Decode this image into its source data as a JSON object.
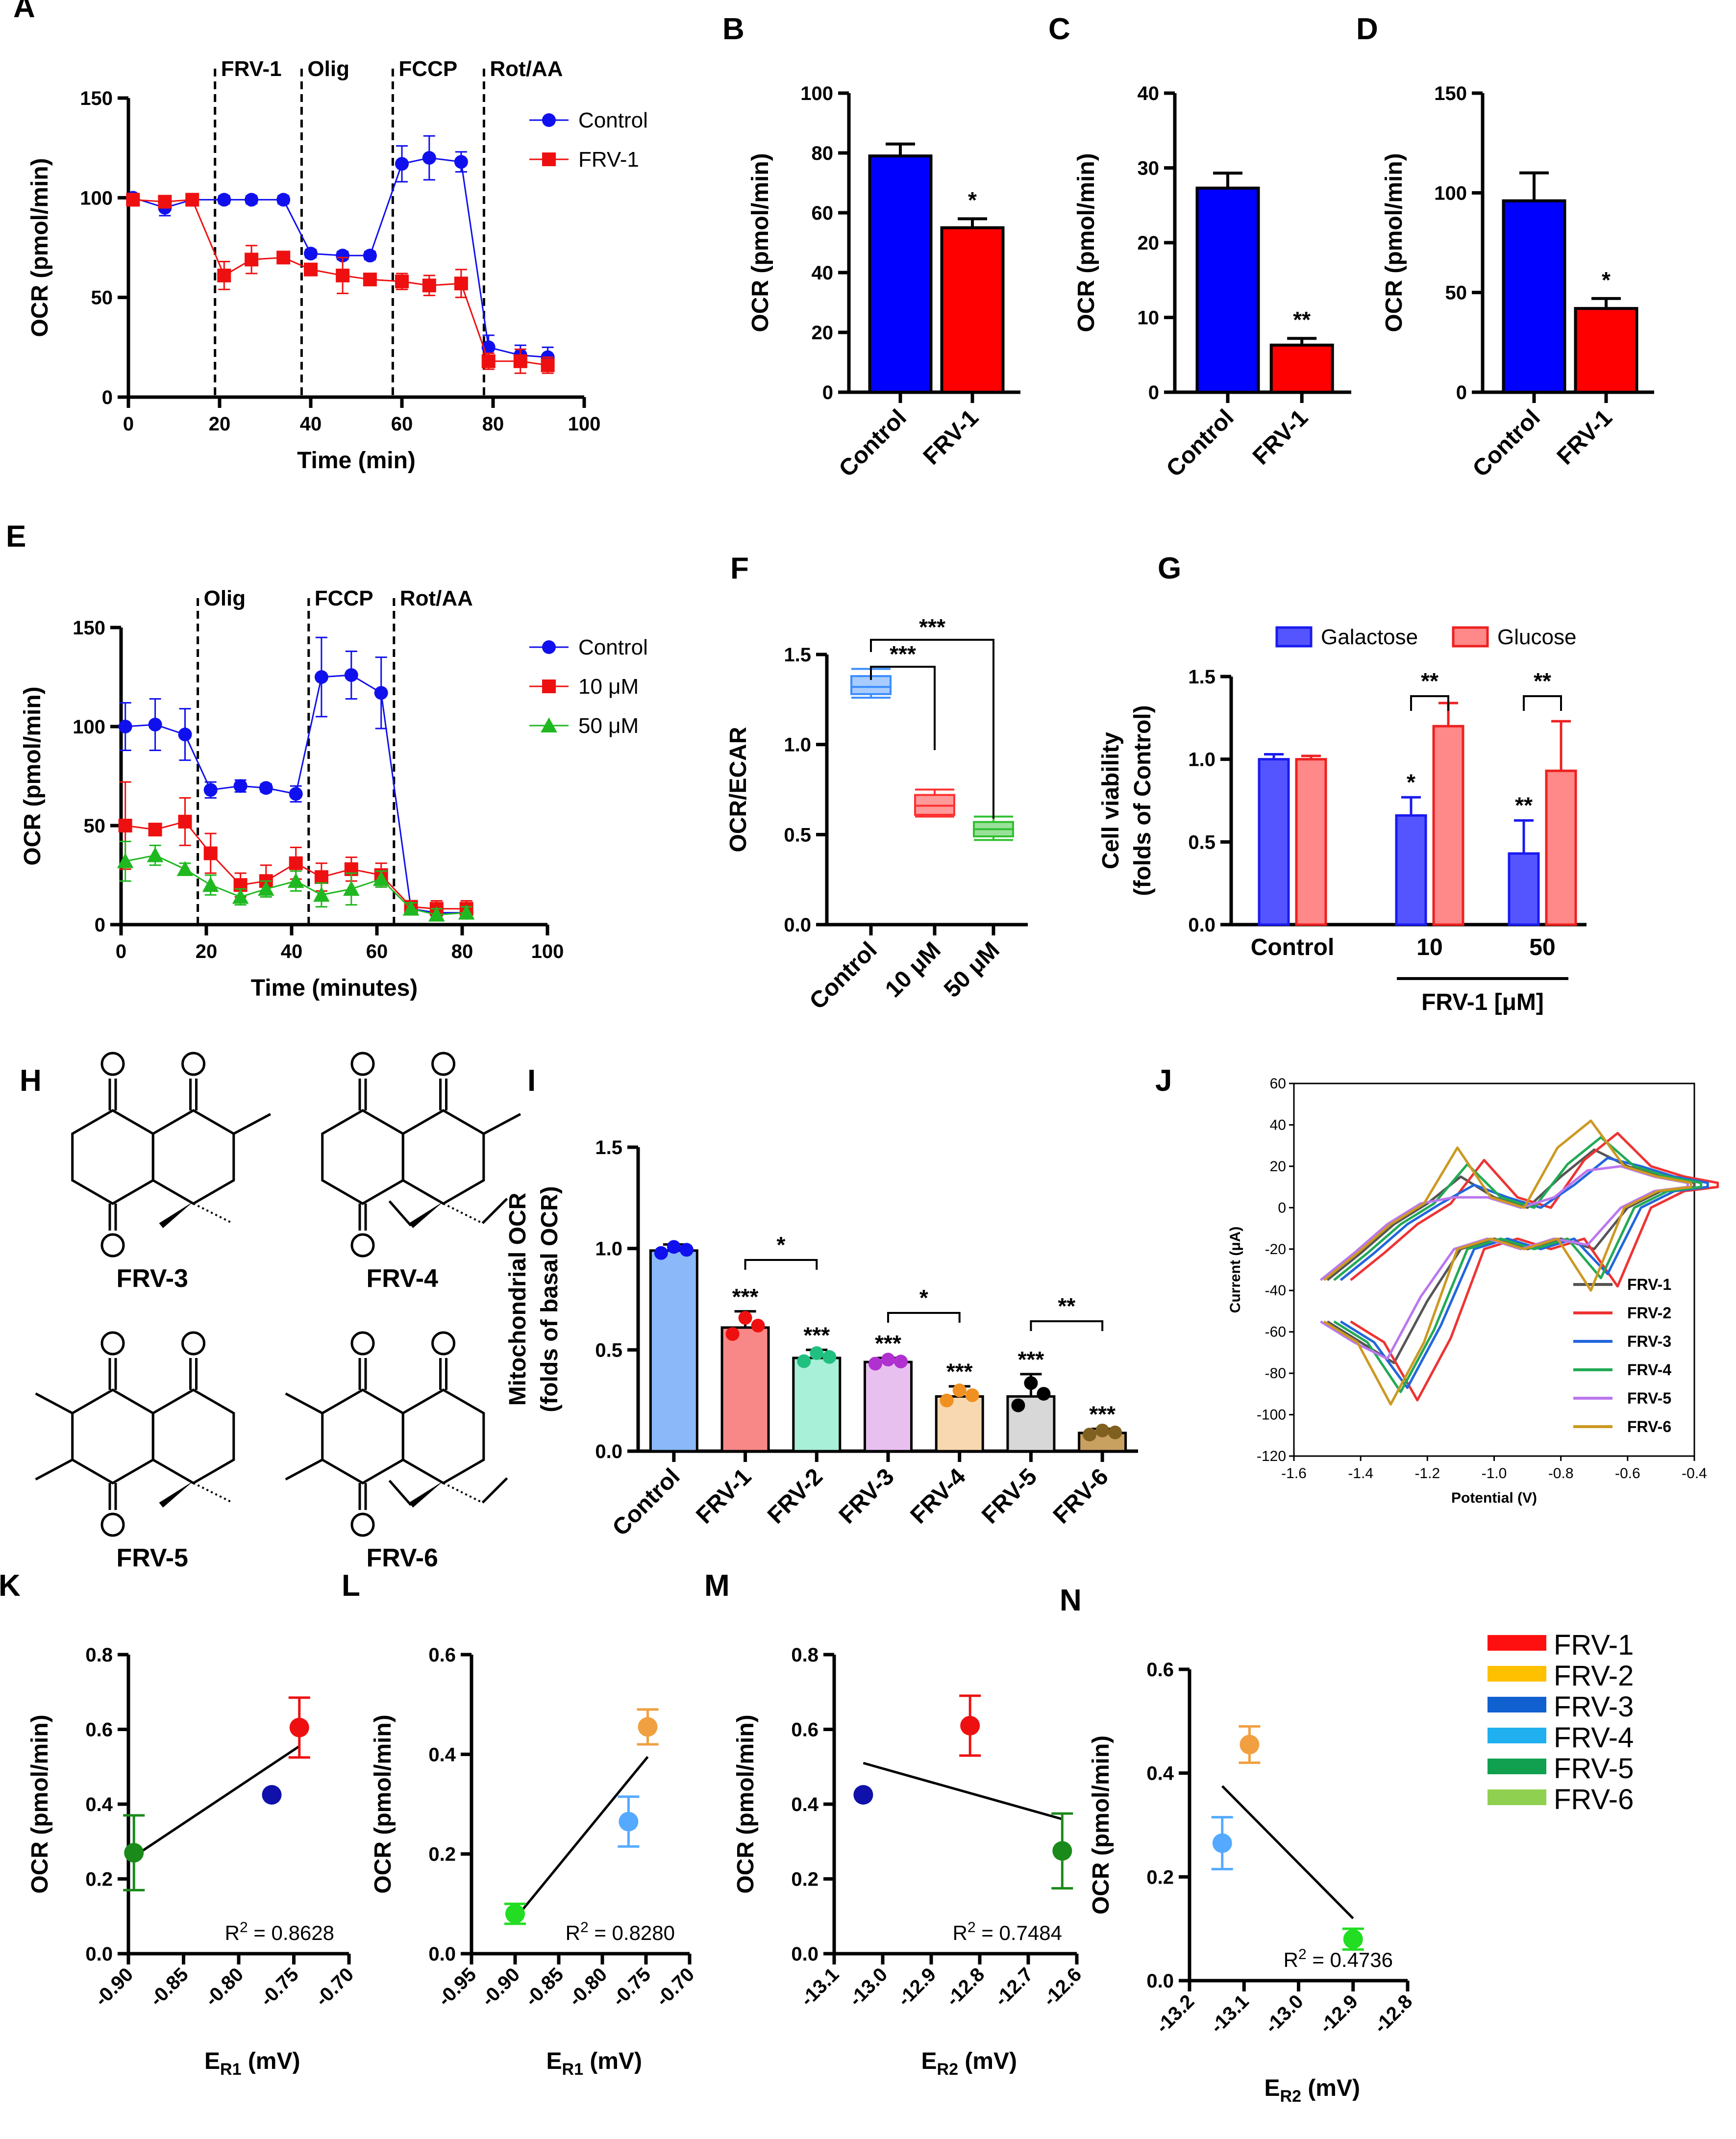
{
  "chart_data": [
    {
      "panel": "A",
      "type": "line",
      "xlabel": "Time (min)",
      "ylabel": "OCR (pmol/min)",
      "xlim": [
        0,
        100
      ],
      "ylim": [
        0,
        150
      ],
      "xticks": [
        0,
        20,
        40,
        60,
        80,
        100
      ],
      "yticks": [
        0,
        50,
        100,
        150
      ],
      "phases": [
        {
          "label": "FRV-1",
          "x": 19
        },
        {
          "label": "Olig",
          "x": 38
        },
        {
          "label": "FCCP",
          "x": 58
        },
        {
          "label": "Rot/AA",
          "x": 78
        }
      ],
      "x": [
        1,
        8,
        14,
        21,
        27,
        34,
        40,
        47,
        53,
        60,
        66,
        73,
        79,
        86,
        92
      ],
      "series": [
        {
          "name": "Control",
          "color": "#1010ee",
          "marker": "circle",
          "values": [
            100,
            95,
            99,
            99,
            99,
            99,
            72,
            71,
            71,
            117,
            120,
            118,
            25,
            21,
            20
          ],
          "err": [
            2,
            4,
            2,
            2,
            2,
            2,
            2,
            2,
            2,
            9,
            11,
            5,
            6,
            5,
            5
          ]
        },
        {
          "name": "FRV-1",
          "color": "#ee1010",
          "marker": "square",
          "values": [
            99,
            98,
            99,
            61,
            69,
            70,
            64,
            61,
            59,
            58,
            56,
            57,
            18,
            18,
            16
          ],
          "err": [
            2,
            2,
            2,
            7,
            7,
            3,
            3,
            9,
            3,
            4,
            5,
            7,
            4,
            6,
            4
          ]
        }
      ]
    },
    {
      "panel": "B",
      "type": "bar",
      "ylabel": "OCR (pmol/min)",
      "categories": [
        "Control",
        "FRV-1"
      ],
      "values": [
        79,
        55
      ],
      "err": [
        4,
        3
      ],
      "colors": [
        "#0000ff",
        "#ff0000"
      ],
      "ylim": [
        0,
        100
      ],
      "yticks": [
        0,
        20,
        40,
        60,
        80,
        100
      ],
      "sig": [
        "",
        "*"
      ]
    },
    {
      "panel": "C",
      "type": "bar",
      "ylabel": "OCR (pmol/min)",
      "categories": [
        "Control",
        "FRV-1"
      ],
      "values": [
        27.3,
        6.3
      ],
      "err": [
        2,
        0.9
      ],
      "colors": [
        "#0000ff",
        "#ff0000"
      ],
      "ylim": [
        0,
        40
      ],
      "yticks": [
        0,
        10,
        20,
        30,
        40
      ],
      "sig": [
        "",
        "**"
      ]
    },
    {
      "panel": "D",
      "type": "bar",
      "ylabel": "OCR (pmol/min)",
      "categories": [
        "Control",
        "FRV-1"
      ],
      "values": [
        96,
        42
      ],
      "err": [
        14,
        5
      ],
      "colors": [
        "#0000ff",
        "#ff0000"
      ],
      "ylim": [
        0,
        150
      ],
      "yticks": [
        0,
        50,
        100,
        150
      ],
      "sig": [
        "",
        "*"
      ]
    },
    {
      "panel": "E",
      "type": "line",
      "xlabel": "Time (minutes)",
      "ylabel": "OCR (pmol/min)",
      "xlim": [
        0,
        100
      ],
      "ylim": [
        0,
        150
      ],
      "xticks": [
        0,
        20,
        40,
        60,
        80,
        100
      ],
      "yticks": [
        0,
        50,
        100,
        150
      ],
      "phases": [
        {
          "label": "Olig",
          "x": 18
        },
        {
          "label": "FCCP",
          "x": 44
        },
        {
          "label": "Rot/AA",
          "x": 64
        }
      ],
      "x": [
        1,
        8,
        15,
        21,
        28,
        34,
        41,
        47,
        54,
        61,
        68,
        74,
        81
      ],
      "series": [
        {
          "name": "Control",
          "color": "#1010ee",
          "marker": "circle",
          "values": [
            100,
            101,
            96,
            68,
            70,
            69,
            66,
            125,
            126,
            117,
            8,
            6,
            6
          ],
          "err": [
            12,
            13,
            13,
            4,
            3,
            2,
            4,
            20,
            12,
            18,
            3,
            3,
            3
          ]
        },
        {
          "name": "10 μM",
          "color": "#ee1010",
          "marker": "square",
          "values": [
            50,
            48,
            52,
            36,
            20,
            22,
            31,
            24,
            28,
            25,
            9,
            8,
            8
          ],
          "err": [
            22,
            3,
            12,
            10,
            6,
            8,
            8,
            7,
            6,
            6,
            3,
            4,
            4
          ]
        },
        {
          "name": "50 μM",
          "color": "#20b820",
          "marker": "triangle",
          "values": [
            32,
            35,
            28,
            20,
            14,
            18,
            22,
            15,
            18,
            23,
            8,
            5,
            6
          ],
          "err": [
            10,
            5,
            3,
            5,
            4,
            4,
            5,
            6,
            8,
            4,
            3,
            3,
            3
          ]
        }
      ]
    },
    {
      "panel": "F",
      "type": "box",
      "ylabel": "OCR/ECAR",
      "categories": [
        "Control",
        "10 μM",
        "50 μM"
      ],
      "colors": [
        "#3a8cff",
        "#ff3030",
        "#30c030"
      ],
      "fills": [
        "#a8ccff",
        "#ff9a9a",
        "#9ae09a"
      ],
      "boxes": [
        [
          1.26,
          1.28,
          1.32,
          1.38,
          1.42
        ],
        [
          0.6,
          0.61,
          0.66,
          0.72,
          0.75
        ],
        [
          0.47,
          0.49,
          0.53,
          0.57,
          0.6
        ]
      ],
      "ylim": [
        0,
        1.5
      ],
      "yticks": [
        "0.0",
        "0.5",
        "1.0",
        "1.5"
      ],
      "brackets": [
        {
          "label": "***"
        },
        {
          "label": "***"
        }
      ]
    },
    {
      "panel": "G",
      "type": "bar",
      "ylabel": "Cell viability",
      "ylabel2": "(folds of Control)",
      "categories": [
        "Control",
        "10",
        "50"
      ],
      "group_label": "FRV-1 [μM]",
      "series": [
        {
          "name": "Galactose",
          "color": "#5555ff",
          "edge": "#1a1aee",
          "values": [
            1.0,
            0.66,
            0.43
          ],
          "err": [
            0.03,
            0.11,
            0.2
          ],
          "sig": [
            "",
            "*",
            "**"
          ]
        },
        {
          "name": "Glucose",
          "color": "#ff8888",
          "edge": "#ee2020",
          "values": [
            1.0,
            1.2,
            0.93
          ],
          "err": [
            0.02,
            0.14,
            0.3
          ]
        }
      ],
      "ylim": [
        0,
        1.5
      ],
      "yticks": [
        "0.0",
        "0.5",
        "1.0",
        "1.5"
      ],
      "brackets": [
        {
          "label": "**"
        },
        {
          "label": "**"
        }
      ]
    },
    {
      "panel": "I",
      "type": "bar",
      "ylabel": "Mitochondrial OCR",
      "ylabel2": "(folds of basal OCR)",
      "categories": [
        "Control",
        "FRV-1",
        "FRV-2",
        "FRV-3",
        "FRV-4",
        "FRV-5",
        "FRV-6"
      ],
      "values": [
        0.99,
        0.61,
        0.46,
        0.44,
        0.27,
        0.27,
        0.09
      ],
      "err": [
        0.03,
        0.08,
        0.04,
        0.02,
        0.05,
        0.11,
        0.02
      ],
      "colors": [
        "#8ab8f8",
        "#f88888",
        "#a8f0d8",
        "#e8c0f0",
        "#f8d8b0",
        "#d8d8d8",
        "#c8a060"
      ],
      "dots": [
        "#1010ee",
        "#ee1010",
        "#20c080",
        "#b030d0",
        "#f09020",
        "#000000",
        "#806020"
      ],
      "sig": [
        "",
        "***",
        "***",
        "***",
        "***",
        "***",
        "***"
      ],
      "ylim": [
        0,
        1.5
      ],
      "yticks": [
        "0.0",
        "0.5",
        "1.0",
        "1.5"
      ],
      "brackets": [
        {
          "label": "*"
        },
        {
          "label": "*"
        },
        {
          "label": "**"
        }
      ]
    },
    {
      "panel": "J",
      "type": "line",
      "xlabel": "Potential (V)",
      "ylabel": "Current (μA)",
      "xlim": [
        -1.6,
        -0.4
      ],
      "ylim": [
        -120,
        60
      ],
      "xticks": [
        "-1.6",
        "-1.4",
        "-1.2",
        "-1.0",
        "-0.8",
        "-0.6",
        "-0.4"
      ],
      "yticks": [
        "60",
        "40",
        "20",
        "0",
        "-20",
        "-40",
        "-60",
        "-80",
        "-100",
        "-120"
      ],
      "legend": [
        {
          "name": "FRV-1",
          "color": "#555555"
        },
        {
          "name": "FRV-2",
          "color": "#ee3333"
        },
        {
          "name": "FRV-3",
          "color": "#2266dd"
        },
        {
          "name": "FRV-4",
          "color": "#22aa55"
        },
        {
          "name": "FRV-5",
          "color": "#bb77ee"
        },
        {
          "name": "FRV-6",
          "color": "#cc9922"
        }
      ]
    },
    {
      "panel": "K",
      "type": "scatter",
      "xlabel": "E",
      "xsub": "R1",
      "xunit": " (mV)",
      "ylabel": "OCR (pmol/min)",
      "xlim": [
        -0.9,
        -0.7
      ],
      "ylim": [
        0,
        0.8
      ],
      "xticks": [
        "-0.90",
        "-0.85",
        "-0.80",
        "-0.75",
        "-0.70"
      ],
      "yticks": [
        "0.0",
        "0.2",
        "0.4",
        "0.6",
        "0.8"
      ],
      "points": [
        {
          "x": -0.895,
          "y": 0.27,
          "err": 0.1,
          "color": "#1a8a1a"
        },
        {
          "x": -0.77,
          "y": 0.425,
          "err": 0,
          "color": "#1010aa"
        },
        {
          "x": -0.745,
          "y": 0.605,
          "err": 0.08,
          "color": "#ee1010"
        }
      ],
      "fit": [
        [
          -0.895,
          0.26
        ],
        [
          -0.745,
          0.555
        ]
      ],
      "r2_prefix": "R",
      "r2_exp": "2",
      "r2_value": " = 0.8628"
    },
    {
      "panel": "L",
      "type": "scatter",
      "xlabel": "E",
      "xsub": "R1",
      "xunit": " (mV)",
      "ylabel": "OCR (pmol/min)",
      "xlim": [
        -0.95,
        -0.7
      ],
      "ylim": [
        0,
        0.6
      ],
      "xticks": [
        "-0.95",
        "-0.90",
        "-0.85",
        "-0.80",
        "-0.75",
        "-0.70"
      ],
      "yticks": [
        "0.0",
        "0.2",
        "0.4",
        "0.6"
      ],
      "points": [
        {
          "x": -0.9,
          "y": 0.08,
          "err": 0.02,
          "color": "#22dd22"
        },
        {
          "x": -0.77,
          "y": 0.265,
          "err": 0.05,
          "color": "#55aaff"
        },
        {
          "x": -0.748,
          "y": 0.455,
          "err": 0.035,
          "color": "#f0a040"
        }
      ],
      "fit": [
        [
          -0.9,
          0.07
        ],
        [
          -0.748,
          0.395
        ]
      ],
      "r2_prefix": "R",
      "r2_exp": "2",
      "r2_value": " = 0.8280"
    },
    {
      "panel": "M",
      "type": "scatter",
      "xlabel": "E",
      "xsub": "R2",
      "xunit": " (mV)",
      "ylabel": "OCR (pmol/min)",
      "xlim": [
        -13.1,
        -12.6
      ],
      "ylim": [
        0,
        0.8
      ],
      "xticks": [
        "-13.1",
        "-13.0",
        "-12.9",
        "-12.8",
        "-12.7",
        "-12.6"
      ],
      "yticks": [
        "0.0",
        "0.2",
        "0.4",
        "0.6",
        "0.8"
      ],
      "points": [
        {
          "x": -13.04,
          "y": 0.425,
          "err": 0,
          "color": "#1010aa"
        },
        {
          "x": -12.82,
          "y": 0.61,
          "err": 0.08,
          "color": "#ee1010"
        },
        {
          "x": -12.63,
          "y": 0.275,
          "err": 0.1,
          "color": "#1a8a1a"
        }
      ],
      "fit": [
        [
          -13.04,
          0.51
        ],
        [
          -12.63,
          0.36
        ]
      ],
      "r2_prefix": "R",
      "r2_exp": "2",
      "r2_value": " = 0.7484"
    },
    {
      "panel": "N",
      "type": "scatter",
      "xlabel": "E",
      "xsub": "R2",
      "xunit": " (mV)",
      "ylabel": "OCR (pmol/min)",
      "xlim": [
        -13.2,
        -12.8
      ],
      "ylim": [
        0,
        0.6
      ],
      "xticks": [
        "-13.2",
        "-13.1",
        "-13.0",
        "-12.9",
        "-12.8"
      ],
      "yticks": [
        "0.0",
        "0.2",
        "0.4",
        "0.6"
      ],
      "points": [
        {
          "x": -13.14,
          "y": 0.265,
          "err": 0.05,
          "color": "#55aaff"
        },
        {
          "x": -13.09,
          "y": 0.455,
          "err": 0.035,
          "color": "#f0a040"
        },
        {
          "x": -12.9,
          "y": 0.08,
          "err": 0.02,
          "color": "#22dd22"
        }
      ],
      "fit": [
        [
          -13.14,
          0.375
        ],
        [
          -12.9,
          0.12
        ]
      ],
      "r2_prefix": "R",
      "r2_exp": "2",
      "r2_value": " = 0.4736"
    }
  ],
  "structures": [
    "FRV-3",
    "FRV-4",
    "FRV-5",
    "FRV-6"
  ],
  "legend_n": [
    {
      "name": "FRV-1",
      "color": "#ff1010"
    },
    {
      "name": "FRV-2",
      "color": "#ffc000"
    },
    {
      "name": "FRV-3",
      "color": "#1060d0"
    },
    {
      "name": "FRV-4",
      "color": "#20b0f0"
    },
    {
      "name": "FRV-5",
      "color": "#10a050"
    },
    {
      "name": "FRV-6",
      "color": "#90d050"
    }
  ],
  "panel_letters": [
    "A",
    "B",
    "C",
    "D",
    "E",
    "F",
    "G",
    "H",
    "I",
    "J",
    "K",
    "L",
    "M",
    "N"
  ],
  "chem_atom": "O"
}
